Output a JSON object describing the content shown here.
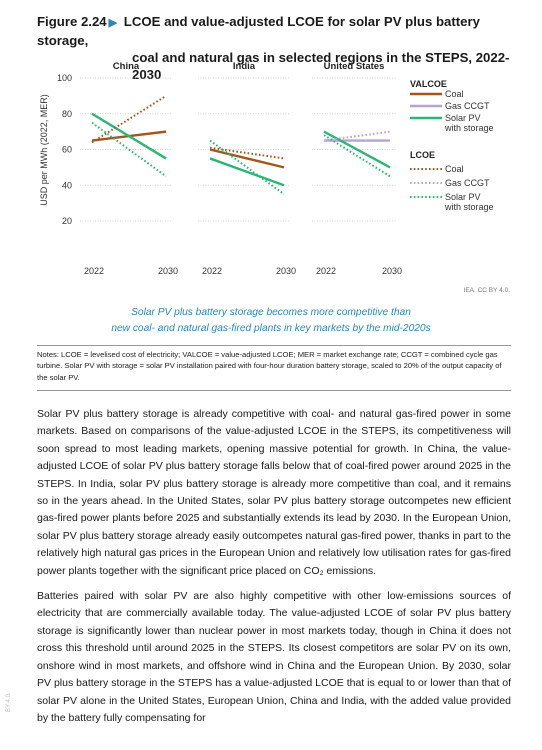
{
  "figure": {
    "number": "Figure 2.24",
    "title_line1": "LCOE and value-adjusted LCOE for solar PV plus battery storage,",
    "title_line2": "coal and natural gas in selected regions in the STEPS, 2022-2030",
    "source": "IEA. CC BY 4.0.",
    "caption_line1": "Solar PV plus battery storage becomes more competitive than",
    "caption_line2": "new coal- and natural gas-fired plants in key markets by the mid-2020s",
    "notes": "Notes: LCOE = levelised cost of electricity; VALCOE = value-adjusted LCOE; MER = market exchange rate; CCGT = combined cycle gas turbine. Solar PV with storage = solar PV installation paired with four-hour duration battery storage, scaled to 20% of the output capacity of the solar PV."
  },
  "colors": {
    "coal": "#a0561e",
    "gas": "#b6a3d6",
    "solar": "#2bb673",
    "accent": "#2c86b8"
  },
  "chart_data": {
    "type": "line",
    "ylabel": "USD per MWh (2022, MER)",
    "ylim": [
      10,
      100
    ],
    "yticks": [
      20,
      40,
      60,
      80,
      100
    ],
    "panels": [
      {
        "name": "China",
        "x": [
          "2022",
          "2030"
        ],
        "series": [
          {
            "name": "Coal",
            "group": "VALCOE",
            "values": [
              65,
              70
            ]
          },
          {
            "name": "Solar PV with storage",
            "group": "VALCOE",
            "values": [
              80,
              55
            ]
          },
          {
            "name": "Coal",
            "group": "LCOE",
            "values": [
              64,
              90
            ]
          },
          {
            "name": "Solar PV with storage",
            "group": "LCOE",
            "values": [
              75,
              45
            ]
          }
        ]
      },
      {
        "name": "India",
        "x": [
          "2022",
          "2030"
        ],
        "series": [
          {
            "name": "Coal",
            "group": "VALCOE",
            "values": [
              60,
              50
            ]
          },
          {
            "name": "Solar PV with storage",
            "group": "VALCOE",
            "values": [
              55,
              40
            ]
          },
          {
            "name": "Coal",
            "group": "LCOE",
            "values": [
              61,
              55
            ]
          },
          {
            "name": "Solar PV with storage",
            "group": "LCOE",
            "values": [
              65,
              35
            ]
          }
        ]
      },
      {
        "name": "United States",
        "x": [
          "2022",
          "2030"
        ],
        "series": [
          {
            "name": "Gas CCGT",
            "group": "VALCOE",
            "values": [
              65,
              65
            ]
          },
          {
            "name": "Solar PV with storage",
            "group": "VALCOE",
            "values": [
              70,
              50
            ]
          },
          {
            "name": "Gas CCGT",
            "group": "LCOE",
            "values": [
              65,
              70
            ]
          },
          {
            "name": "Solar PV with storage",
            "group": "LCOE",
            "values": [
              68,
              45
            ]
          }
        ]
      }
    ],
    "legend": {
      "valcoe_label": "VALCOE",
      "lcoe_label": "LCOE",
      "items": [
        {
          "name": "Coal",
          "key": "coal"
        },
        {
          "name": "Gas CCGT",
          "key": "gas"
        },
        {
          "name": "Solar PV",
          "name2": "with storage",
          "key": "solar"
        }
      ]
    }
  },
  "body": {
    "p1": "Solar PV plus battery storage is already competitive with coal- and natural gas-fired power in some markets. Based on comparisons of the value-adjusted LCOE in the STEPS, its competitiveness will soon spread to most leading markets, opening massive potential for growth. In China, the value-adjusted LCOE of solar PV plus battery storage falls below that of coal-fired power around 2025 in the STEPS. In India, solar PV plus battery storage is already more competitive than coal, and it remains so in the years ahead. In the United States, solar PV plus battery storage outcompetes new efficient gas-fired power plants before 2025 and substantially extends its lead by 2030. In the European Union, solar PV plus battery storage already easily outcompetes natural gas-fired power, thanks in part to the relatively high natural gas prices in the European Union and relatively low utilisation rates for gas-fired power plants together with the significant price placed on CO₂ emissions.",
    "p2": "Batteries paired with solar PV are also highly competitive with other low-emissions sources of electricity that are commercially available today. The value-adjusted LCOE of solar PV plus battery storage is significantly lower than nuclear power in most markets today, though in China it does not cross this threshold until around 2025 in the STEPS. Its closest competitors are solar PV on its own, onshore wind in most markets, and offshore wind in China and the European Union. By 2030, solar PV plus battery storage in the STEPS has a value-adjusted LCOE that is equal to or lower than that of solar PV alone in the United States, European Union, China and India, with the added value provided by the battery fully compensating for",
    "side_mark": "BY 4.0."
  }
}
